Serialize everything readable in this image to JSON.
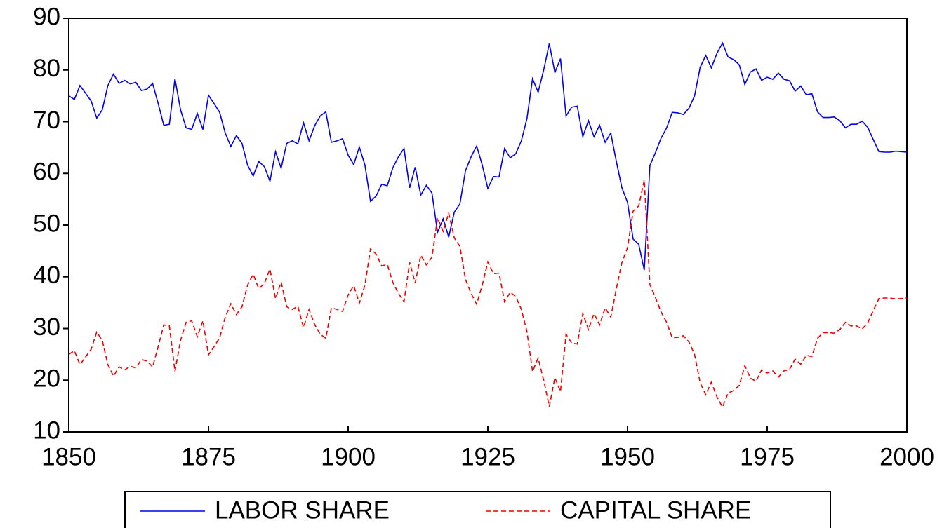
{
  "chart_data": {
    "type": "line",
    "x": [
      1850,
      1851,
      1852,
      1853,
      1854,
      1855,
      1856,
      1857,
      1858,
      1859,
      1860,
      1861,
      1862,
      1863,
      1864,
      1865,
      1866,
      1867,
      1868,
      1869,
      1870,
      1871,
      1872,
      1873,
      1874,
      1875,
      1876,
      1877,
      1878,
      1879,
      1880,
      1881,
      1882,
      1883,
      1884,
      1885,
      1886,
      1887,
      1888,
      1889,
      1890,
      1891,
      1892,
      1893,
      1894,
      1895,
      1896,
      1897,
      1898,
      1899,
      1900,
      1901,
      1902,
      1903,
      1904,
      1905,
      1906,
      1907,
      1908,
      1909,
      1910,
      1911,
      1912,
      1913,
      1914,
      1915,
      1916,
      1917,
      1918,
      1919,
      1920,
      1921,
      1922,
      1923,
      1924,
      1925,
      1926,
      1927,
      1928,
      1929,
      1930,
      1931,
      1932,
      1933,
      1934,
      1935,
      1936,
      1937,
      1938,
      1939,
      1940,
      1941,
      1942,
      1943,
      1944,
      1945,
      1946,
      1947,
      1948,
      1949,
      1950,
      1951,
      1952,
      1953,
      1954,
      1955,
      1956,
      1957,
      1958,
      1959,
      1960,
      1961,
      1962,
      1963,
      1964,
      1965,
      1966,
      1967,
      1968,
      1969,
      1970,
      1971,
      1972,
      1973,
      1974,
      1975,
      1976,
      1977,
      1978,
      1979,
      1980,
      1981,
      1982,
      1983,
      1984,
      1985,
      1986,
      1987,
      1988,
      1989,
      1990,
      1991,
      1992,
      1993,
      1994,
      1995,
      1996,
      1997,
      1998,
      1999,
      2000
    ],
    "series": [
      {
        "name": "LABOR SHARE",
        "color": "#0000ee",
        "dash": false,
        "values": [
          75,
          74.3,
          77,
          75.5,
          74,
          70.7,
          72.3,
          77,
          79.2,
          77.4,
          78,
          77.3,
          77.6,
          76,
          76.3,
          77.4,
          73.5,
          69.3,
          69.5,
          78.3,
          72.3,
          68.8,
          68.5,
          71.6,
          68.5,
          75.1,
          73.5,
          71.8,
          67.8,
          65.2,
          67.3,
          65.8,
          61.6,
          59.5,
          62.3,
          61.3,
          58.5,
          64.2,
          61,
          65.8,
          66.3,
          65.7,
          69.8,
          66.3,
          69.2,
          71.1,
          71.9,
          66,
          66.3,
          66.7,
          63.5,
          61.7,
          65.1,
          61.6,
          54.6,
          55.6,
          57.9,
          57.6,
          61.1,
          63.2,
          64.8,
          57.2,
          61.2,
          55.8,
          57.7,
          56.2,
          48.6,
          51.2,
          47.7,
          52.5,
          54.1,
          60.5,
          63.2,
          65.3,
          61.6,
          57.1,
          59.4,
          59.3,
          64.8,
          63,
          63.8,
          66.3,
          70.6,
          78.3,
          75.7,
          80,
          85.1,
          79.5,
          82.2,
          71.1,
          72.8,
          73,
          67.1,
          70.2,
          67.1,
          69.3,
          66,
          67.8,
          62.3,
          57.2,
          54.4,
          47.3,
          46.3,
          41.3,
          61.5,
          64,
          66.8,
          68.8,
          71.8,
          71.7,
          71.4,
          72.6,
          75,
          80.5,
          82.8,
          80.4,
          83.2,
          85.2,
          82.5,
          82,
          81,
          77.2,
          79.6,
          80.2,
          78,
          78.6,
          78.2,
          79.4,
          78.2,
          77.9,
          75.9,
          76.9,
          75.2,
          75.4,
          71.9,
          70.8,
          70.8,
          70.9,
          70.2,
          68.8,
          69.5,
          69.5,
          70.1,
          68.9,
          66.5,
          64.2,
          64.1,
          64.1,
          64.3,
          64.2,
          64.1
        ]
      },
      {
        "name": "CAPITAL SHARE",
        "color": "#ee0000",
        "dash": true,
        "values": [
          25,
          25.7,
          23,
          24.5,
          26,
          29.3,
          27.7,
          23,
          20.8,
          22.6,
          22,
          22.7,
          22.4,
          24,
          23.7,
          22.6,
          26.5,
          30.7,
          30.5,
          21.7,
          27.7,
          31.2,
          31.5,
          28.4,
          31.5,
          24.9,
          26.5,
          28.2,
          32.2,
          34.8,
          32.7,
          34.2,
          38.4,
          40.5,
          37.7,
          38.7,
          41.5,
          35.8,
          39,
          34.2,
          33.7,
          34.3,
          30.2,
          33.7,
          30.8,
          28.9,
          28.1,
          34,
          33.7,
          33.3,
          36.5,
          38.3,
          34.9,
          38.4,
          45.4,
          44.4,
          42.1,
          42.4,
          38.9,
          36.8,
          35.2,
          42.8,
          38.8,
          44.2,
          42.3,
          43.8,
          51.4,
          48.8,
          52.3,
          47.5,
          45.9,
          39.5,
          36.8,
          34.7,
          38.4,
          42.9,
          40.6,
          40.7,
          35.2,
          37,
          36.2,
          33.7,
          29.4,
          21.7,
          24.3,
          20,
          14.9,
          20.5,
          17.8,
          28.9,
          27.2,
          27,
          32.9,
          29.8,
          32.9,
          30.7,
          34,
          32.2,
          37.7,
          42.8,
          45.6,
          52.7,
          53.7,
          58.7,
          38.5,
          36,
          33.2,
          31.2,
          28.2,
          28.3,
          28.6,
          27.4,
          25,
          19.5,
          17.2,
          19.6,
          16.8,
          14.8,
          17.5,
          18,
          19,
          22.8,
          20.4,
          19.8,
          22,
          21.4,
          21.8,
          20.6,
          21.8,
          22.1,
          24.1,
          23.1,
          24.8,
          24.6,
          28.1,
          29.2,
          29.2,
          29.1,
          29.8,
          31.2,
          30.5,
          30.5,
          29.9,
          31.1,
          33.5,
          35.8,
          35.9,
          35.9,
          35.7,
          35.8,
          35.9
        ]
      }
    ],
    "xlim": [
      1850,
      2000
    ],
    "xticks": [
      1850,
      1875,
      1900,
      1925,
      1950,
      1975,
      2000
    ],
    "ylim": [
      10,
      90
    ],
    "yticks": [
      10,
      20,
      30,
      40,
      50,
      60,
      70,
      80,
      90
    ],
    "grid": false,
    "legend": "bottom"
  }
}
